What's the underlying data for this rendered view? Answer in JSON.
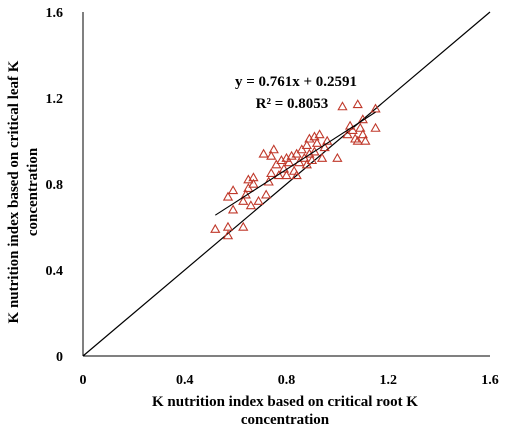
{
  "chart_data": {
    "type": "scatter",
    "xlabel": [
      "K nutrition index based on critical root K",
      "concentration"
    ],
    "ylabel": [
      "K nutrition index based on critical leaf K",
      "concentration"
    ],
    "xlim": [
      0,
      1.6
    ],
    "ylim": [
      0,
      1.6
    ],
    "xticks": [
      "0",
      "0.4",
      "0.8",
      "1.2",
      "1.6"
    ],
    "yticks": [
      "0",
      "0.4",
      "0.8",
      "1.2",
      "1.6"
    ],
    "marker": "open-triangle",
    "marker_color": "#c0392b",
    "grid": false,
    "equation": "y = 0.761x + 0.2591",
    "r2": "R² = 0.8053",
    "trendline": {
      "slope": 0.761,
      "intercept": 0.2591,
      "x_range": [
        0.52,
        1.15
      ]
    },
    "identity_line": {
      "x_range": [
        0,
        1.6
      ]
    },
    "points": [
      [
        0.52,
        0.59
      ],
      [
        0.57,
        0.56
      ],
      [
        0.57,
        0.6
      ],
      [
        0.57,
        0.74
      ],
      [
        0.59,
        0.68
      ],
      [
        0.59,
        0.77
      ],
      [
        0.63,
        0.6
      ],
      [
        0.63,
        0.72
      ],
      [
        0.64,
        0.75
      ],
      [
        0.65,
        0.78
      ],
      [
        0.65,
        0.82
      ],
      [
        0.66,
        0.7
      ],
      [
        0.67,
        0.8
      ],
      [
        0.67,
        0.83
      ],
      [
        0.69,
        0.72
      ],
      [
        0.71,
        0.94
      ],
      [
        0.72,
        0.75
      ],
      [
        0.73,
        0.81
      ],
      [
        0.74,
        0.85
      ],
      [
        0.74,
        0.93
      ],
      [
        0.75,
        0.96
      ],
      [
        0.76,
        0.89
      ],
      [
        0.77,
        0.84
      ],
      [
        0.78,
        0.91
      ],
      [
        0.79,
        0.87
      ],
      [
        0.8,
        0.92
      ],
      [
        0.8,
        0.84
      ],
      [
        0.81,
        0.9
      ],
      [
        0.82,
        0.93
      ],
      [
        0.83,
        0.86
      ],
      [
        0.84,
        0.84
      ],
      [
        0.84,
        0.94
      ],
      [
        0.85,
        0.9
      ],
      [
        0.86,
        0.96
      ],
      [
        0.87,
        0.92
      ],
      [
        0.88,
        0.89
      ],
      [
        0.88,
        0.98
      ],
      [
        0.89,
        1.01
      ],
      [
        0.89,
        0.94
      ],
      [
        0.9,
        0.91
      ],
      [
        0.91,
        0.95
      ],
      [
        0.91,
        1.02
      ],
      [
        0.92,
        0.99
      ],
      [
        0.93,
        1.03
      ],
      [
        0.94,
        0.92
      ],
      [
        0.95,
        0.97
      ],
      [
        0.96,
        1.0
      ],
      [
        1.0,
        0.92
      ],
      [
        1.02,
        1.16
      ],
      [
        1.04,
        1.03
      ],
      [
        1.05,
        1.07
      ],
      [
        1.06,
        1.05
      ],
      [
        1.07,
        1.01
      ],
      [
        1.08,
        1.17
      ],
      [
        1.08,
        1.0
      ],
      [
        1.09,
        1.06
      ],
      [
        1.1,
        1.03
      ],
      [
        1.1,
        1.1
      ],
      [
        1.11,
        1.0
      ],
      [
        1.15,
        1.06
      ],
      [
        1.15,
        1.15
      ]
    ]
  }
}
